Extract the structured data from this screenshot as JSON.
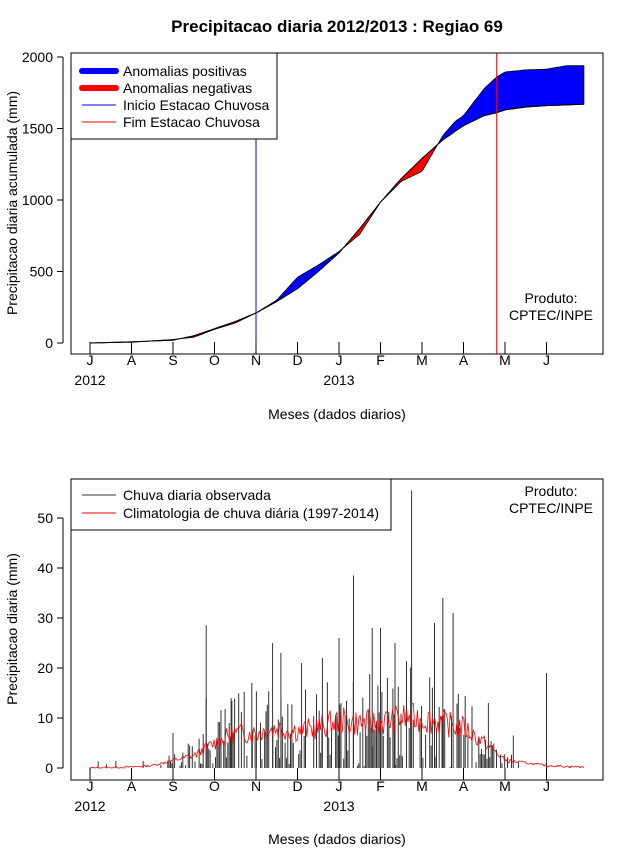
{
  "chart_data": [
    {
      "type": "area",
      "title": "Precipitacao diaria 2012/2013 : Regiao 69",
      "xlabel": "Meses (dados diarios)",
      "ylabel": "Precipitacao diaria acumulada (mm)",
      "ylim": [
        0,
        2000
      ],
      "yticks": [
        0,
        500,
        1000,
        1500,
        2000
      ],
      "month_ticks": [
        "J",
        "A",
        "S",
        "O",
        "N",
        "D",
        "J",
        "F",
        "M",
        "A",
        "M",
        "J"
      ],
      "year_labels": [
        "2012",
        "2013"
      ],
      "series": [
        {
          "name": "Anomalias positivas",
          "color": "#0000ff"
        },
        {
          "name": "Anomalias negativas",
          "color": "#ff0000"
        },
        {
          "name": "Inicio Estacao Chuvosa",
          "color": "#0000ff",
          "month_index": 4
        },
        {
          "name": "Fim Estacao Chuvosa",
          "color": "#ff0000",
          "month_index": 9.8
        }
      ],
      "observed_accumulated": {
        "month_index": [
          0,
          1,
          2,
          2.5,
          3,
          3.5,
          4,
          4.5,
          5,
          5.5,
          6,
          6.5,
          7,
          7.5,
          8,
          8.5,
          8.8,
          9,
          9.5,
          9.8,
          10,
          10.5,
          11,
          11.5,
          11.9
        ],
        "values": [
          0,
          5,
          25,
          40,
          95,
          140,
          210,
          300,
          460,
          545,
          640,
          760,
          985,
          1130,
          1200,
          1450,
          1550,
          1590,
          1780,
          1860,
          1895,
          1910,
          1915,
          1940,
          1940
        ]
      },
      "climatology_accumulated": {
        "month_index": [
          0,
          1,
          2,
          2.5,
          3,
          3.5,
          4,
          4.5,
          5,
          5.5,
          6,
          6.5,
          7,
          7.5,
          8,
          8.5,
          8.8,
          9,
          9.5,
          9.8,
          10,
          10.5,
          11,
          11.5,
          11.9
        ],
        "values": [
          0,
          8,
          20,
          50,
          100,
          150,
          210,
          290,
          380,
          500,
          630,
          800,
          985,
          1150,
          1290,
          1420,
          1480,
          1520,
          1590,
          1610,
          1630,
          1650,
          1660,
          1665,
          1670
        ]
      },
      "annotation": "Produto:\nCPTEC/INPE",
      "annotation_lines": [
        "Produto:",
        "CPTEC/INPE"
      ]
    },
    {
      "type": "bar",
      "title": "",
      "xlabel": "Meses (dados diarios)",
      "ylabel": "Precipitacao diaria (mm)",
      "ylim": [
        0,
        57
      ],
      "yticks": [
        0,
        10,
        20,
        30,
        40,
        50
      ],
      "month_ticks": [
        "J",
        "A",
        "S",
        "O",
        "N",
        "D",
        "J",
        "F",
        "M",
        "A",
        "M",
        "J"
      ],
      "year_labels": [
        "2012",
        "2013"
      ],
      "series": [
        {
          "name": "Chuva diaria observada",
          "color": "#333333"
        },
        {
          "name": "Climatologia de chuva diária (1997-2014)",
          "color": "#ff0000"
        }
      ],
      "observed_peaks": [
        {
          "month_index": 2.0,
          "value": 7
        },
        {
          "month_index": 2.8,
          "value": 14
        },
        {
          "month_index": 2.8,
          "value": 28.5
        },
        {
          "month_index": 3.4,
          "value": 14
        },
        {
          "month_index": 3.9,
          "value": 17
        },
        {
          "month_index": 4.4,
          "value": 25
        },
        {
          "month_index": 4.6,
          "value": 23
        },
        {
          "month_index": 5.1,
          "value": 21
        },
        {
          "month_index": 5.6,
          "value": 22
        },
        {
          "month_index": 6.0,
          "value": 26
        },
        {
          "month_index": 6.35,
          "value": 38.5
        },
        {
          "month_index": 6.8,
          "value": 28
        },
        {
          "month_index": 7.0,
          "value": 28
        },
        {
          "month_index": 7.35,
          "value": 25
        },
        {
          "month_index": 7.75,
          "value": 55.5
        },
        {
          "month_index": 8.3,
          "value": 29
        },
        {
          "month_index": 8.5,
          "value": 34
        },
        {
          "month_index": 8.75,
          "value": 31
        },
        {
          "month_index": 9.6,
          "value": 13
        },
        {
          "month_index": 10.2,
          "value": 6.5
        },
        {
          "month_index": 11.0,
          "value": 19
        }
      ],
      "climatology": {
        "month_index": [
          0,
          1,
          1.5,
          2,
          2.5,
          3,
          3.5,
          4,
          4.5,
          5,
          5.5,
          6,
          6.5,
          7,
          7.5,
          8,
          8.5,
          9,
          9.5,
          9.8,
          10,
          10.5,
          11,
          11.5,
          11.9
        ],
        "values": [
          0,
          0.2,
          0.5,
          1.5,
          2.5,
          5,
          7,
          7,
          8,
          7.5,
          8,
          9.5,
          9,
          9,
          10,
          10,
          9,
          8,
          5,
          3,
          1.5,
          1,
          0.5,
          0.3,
          0.2
        ]
      },
      "annotation": "Produto:\nCPTEC/INPE",
      "annotation_lines": [
        "Produto:",
        "CPTEC/INPE"
      ]
    }
  ]
}
